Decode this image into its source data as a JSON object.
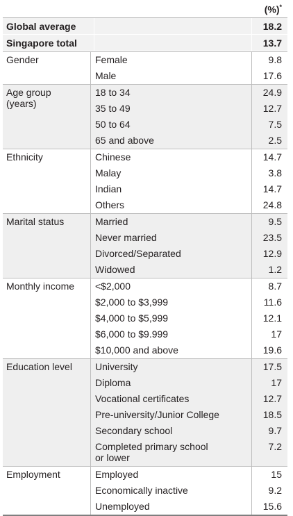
{
  "header": {
    "percent_label": "(%)",
    "footnote_mark": "*"
  },
  "summary": [
    {
      "label": "Global average",
      "value": "18.2"
    },
    {
      "label": "Singapore total",
      "value": "13.7"
    }
  ],
  "sections": [
    {
      "category": "Gender",
      "rows": [
        {
          "item": "Female",
          "value": "9.8"
        },
        {
          "item": "Male",
          "value": "17.6"
        }
      ]
    },
    {
      "category": "Age group\n(years)",
      "rows": [
        {
          "item": "18 to 34",
          "value": "24.9"
        },
        {
          "item": "35 to 49",
          "value": "12.7"
        },
        {
          "item": "50 to 64",
          "value": "7.5"
        },
        {
          "item": "65 and above",
          "value": "2.5"
        }
      ]
    },
    {
      "category": "Ethnicity",
      "rows": [
        {
          "item": "Chinese",
          "value": "14.7"
        },
        {
          "item": "Malay",
          "value": "3.8"
        },
        {
          "item": "Indian",
          "value": "14.7"
        },
        {
          "item": "Others",
          "value": "24.8"
        }
      ]
    },
    {
      "category": "Marital status",
      "rows": [
        {
          "item": "Married",
          "value": "9.5"
        },
        {
          "item": "Never married",
          "value": "23.5"
        },
        {
          "item": "Divorced/Separated",
          "value": "12.9"
        },
        {
          "item": "Widowed",
          "value": "1.2"
        }
      ]
    },
    {
      "category": "Monthly income",
      "rows": [
        {
          "item": "<$2,000",
          "value": "8.7"
        },
        {
          "item": "$2,000 to $3,999",
          "value": "11.6"
        },
        {
          "item": "$4,000 to $5,999",
          "value": "12.1"
        },
        {
          "item": "$6,000 to $9.999",
          "value": "17"
        },
        {
          "item": "$10,000 and above",
          "value": "19.6"
        }
      ]
    },
    {
      "category": "Education level",
      "rows": [
        {
          "item": "University",
          "value": "17.5"
        },
        {
          "item": "Diploma",
          "value": "17"
        },
        {
          "item": "Vocational certificates",
          "value": "12.7"
        },
        {
          "item": "Pre-university/Junior College",
          "value": "18.5"
        },
        {
          "item": "Secondary school",
          "value": "9.7"
        },
        {
          "item": "Completed primary school\nor lower",
          "value": "7.2"
        }
      ]
    },
    {
      "category": "Employment",
      "rows": [
        {
          "item": "Employed",
          "value": "15"
        },
        {
          "item": "Economically inactive",
          "value": "9.2"
        },
        {
          "item": "Unemployed",
          "value": "15.6"
        }
      ]
    }
  ],
  "colors": {
    "shade": "#efefef",
    "rule": "#bdbdbd",
    "text": "#231f20"
  }
}
